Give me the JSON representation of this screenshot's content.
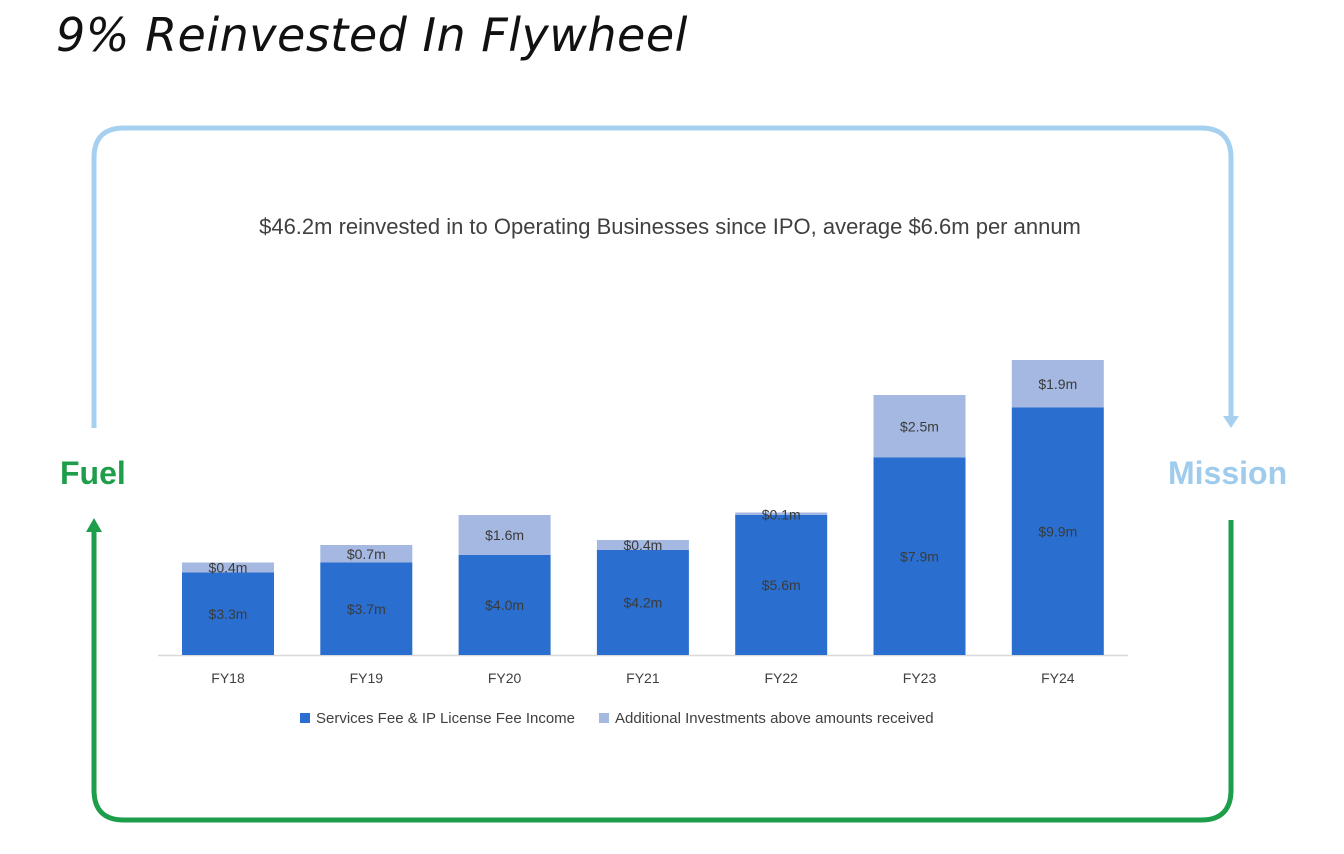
{
  "slide": {
    "title": "9% Reinvested In Flywheel",
    "left_label": "Fuel",
    "right_label": "Mission"
  },
  "colors": {
    "series1": "#2a6fd0",
    "series2": "#a4b8e2",
    "fuel": "#1e9e4a",
    "mission": "#9fcbed",
    "loop_top": "#a6d0f0",
    "loop_bottom": "#1e9e4a"
  },
  "chart_data": {
    "type": "bar",
    "stacked": true,
    "title": "$46.2m reinvested in to Operating Businesses since IPO, average $6.6m per annum",
    "categories": [
      "FY18",
      "FY19",
      "FY20",
      "FY21",
      "FY22",
      "FY23",
      "FY24"
    ],
    "series": [
      {
        "name": "Services Fee & IP License Fee Income",
        "values": [
          3.3,
          3.7,
          4.0,
          4.2,
          5.6,
          7.9,
          9.9
        ],
        "labels": [
          "$3.3m",
          "$3.7m",
          "$4.0m",
          "$4.2m",
          "$5.6m",
          "$7.9m",
          "$9.9m"
        ]
      },
      {
        "name": "Additional Investments above amounts received",
        "values": [
          0.4,
          0.7,
          1.6,
          0.4,
          0.1,
          2.5,
          1.9
        ],
        "labels": [
          "$0.4m",
          "$0.7m",
          "$1.6m",
          "$0.4m",
          "$0.1m",
          "$2.5m",
          "$1.9m"
        ]
      }
    ],
    "ylim": [
      0,
      12
    ],
    "grid": false,
    "legend": "bottom"
  }
}
